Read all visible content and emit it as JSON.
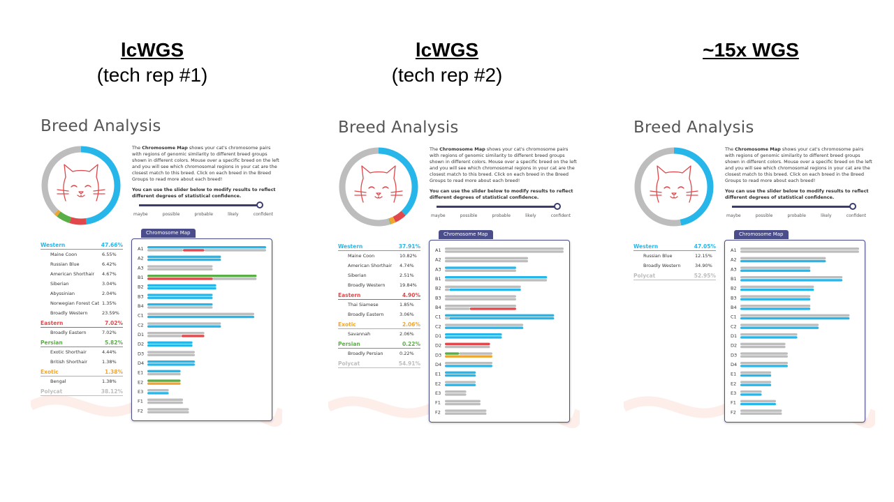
{
  "colors": {
    "Western": "#27b6e9",
    "Eastern": "#e2474b",
    "Persian": "#5aae47",
    "Exotic": "#f0a531",
    "Polycat": "#bdbdbd"
  },
  "columns": [
    {
      "title": "lcWGS",
      "subtitle": "(tech rep #1)"
    },
    {
      "title": "lcWGS",
      "subtitle": "(tech rep #2)"
    },
    {
      "title": "~15x WGS",
      "subtitle": ""
    }
  ],
  "panel": {
    "title": "Breed Analysis",
    "desc_bold": "Chromosome Map",
    "desc_pre": "The",
    "desc_post": "shows your cat's chromosome pairs with regions of genomic similarity to different breed groups shown in different colors. Mouse over a specific breed on the left and you will see which chromosomal regions in your cat are the closest match to this breed. Click on each breed in the Breed Groups to read more about each breed!",
    "desc2": "You can use the slider below to modify results to reflect different degrees of statistical confidence.",
    "slider_labels": [
      "maybe",
      "possible",
      "probable",
      "likely",
      "confident"
    ],
    "cmap_tab": "Chromosome Map",
    "chromosomes": [
      "A1",
      "A2",
      "A3",
      "B1",
      "B2",
      "B3",
      "B4",
      "C1",
      "C2",
      "D1",
      "D2",
      "D3",
      "D4",
      "E1",
      "E2",
      "E3",
      "F1",
      "F2"
    ]
  },
  "chart_data": [
    {
      "type": "table",
      "title": "Breed Analysis",
      "panel": "lcWGS (tech rep #1)",
      "groups": [
        {
          "name": "Western",
          "pct": "47.66%",
          "breeds": [
            {
              "name": "Maine Coon",
              "pct": "6.55%"
            },
            {
              "name": "Russian Blue",
              "pct": "6.42%"
            },
            {
              "name": "American Shorthair",
              "pct": "4.67%"
            },
            {
              "name": "Siberian",
              "pct": "3.04%"
            },
            {
              "name": "Abyssinian",
              "pct": "2.04%"
            },
            {
              "name": "Norwegian Forest Cat",
              "pct": "1.35%"
            },
            {
              "name": "Broadly Western",
              "pct": "23.59%"
            }
          ]
        },
        {
          "name": "Eastern",
          "pct": "7.02%",
          "breeds": [
            {
              "name": "Broadly Eastern",
              "pct": "7.02%"
            }
          ]
        },
        {
          "name": "Persian",
          "pct": "5.82%",
          "breeds": [
            {
              "name": "Exotic Shorthair",
              "pct": "4.44%"
            },
            {
              "name": "British Shorthair",
              "pct": "1.38%"
            }
          ]
        },
        {
          "name": "Exotic",
          "pct": "1.38%",
          "breeds": [
            {
              "name": "Bengal",
              "pct": "1.38%"
            }
          ]
        },
        {
          "name": "Polycat",
          "pct": "38.12%",
          "breeds": []
        }
      ],
      "donut": [
        {
          "group": "Western",
          "value": 47.66
        },
        {
          "group": "Eastern",
          "value": 7.02
        },
        {
          "group": "Persian",
          "value": 5.82
        },
        {
          "group": "Exotic",
          "value": 1.38
        },
        {
          "group": "Polycat",
          "value": 38.12
        }
      ],
      "chromosome_lengths": [
        1.0,
        0.62,
        0.55,
        0.92,
        0.58,
        0.55,
        0.55,
        0.9,
        0.62,
        0.48,
        0.38,
        0.4,
        0.4,
        0.28,
        0.28,
        0.18,
        0.3,
        0.35
      ],
      "chromosome_tracks": [
        [
          [
            "Western",
            0,
            1
          ]
        ],
        [
          [
            "Western",
            0,
            1
          ]
        ],
        [
          [
            "Polycat",
            0,
            1
          ]
        ],
        [
          [
            "Persian",
            0,
            1
          ]
        ],
        [
          [
            "Western",
            0,
            1
          ]
        ],
        [
          [
            "Western",
            0,
            1
          ]
        ],
        [
          [
            "Western",
            0,
            1
          ]
        ],
        [
          [
            "Polycat",
            0,
            1
          ]
        ],
        [
          [
            "Polycat",
            0,
            1
          ]
        ],
        [
          [
            "Polycat",
            0,
            1
          ]
        ],
        [
          [
            "Western",
            0,
            1
          ]
        ],
        [
          [
            "Polycat",
            0,
            1
          ]
        ],
        [
          [
            "Western",
            0,
            1
          ]
        ],
        [
          [
            "Western",
            0,
            1
          ]
        ],
        [
          [
            "Persian",
            0,
            1
          ]
        ],
        [
          [
            "Polycat",
            0,
            1
          ]
        ],
        [
          [
            "Polycat",
            0,
            1
          ]
        ],
        [
          [
            "Polycat",
            0,
            1
          ]
        ]
      ],
      "chromosome_tracks_2": [
        [
          [
            "Polycat",
            0,
            0.3
          ],
          [
            "Eastern",
            0.3,
            0.48
          ],
          [
            "Polycat",
            0.48,
            1
          ]
        ],
        [
          [
            "Western",
            0,
            1
          ]
        ],
        [
          [
            "Polycat",
            0,
            1
          ]
        ],
        [
          [
            "Eastern",
            0,
            0.6
          ],
          [
            "Polycat",
            0.6,
            1
          ]
        ],
        [
          [
            "Western",
            0,
            1
          ]
        ],
        [
          [
            "Western",
            0,
            1
          ]
        ],
        [
          [
            "Polycat",
            0,
            1
          ]
        ],
        [
          [
            "Western",
            0,
            1
          ]
        ],
        [
          [
            "Western",
            0,
            1
          ]
        ],
        [
          [
            "Polycat",
            0,
            0.6
          ],
          [
            "Eastern",
            0.6,
            1
          ]
        ],
        [
          [
            "Western",
            0,
            1
          ]
        ],
        [
          [
            "Polycat",
            0,
            1
          ]
        ],
        [
          [
            "Western",
            0,
            1
          ]
        ],
        [
          [
            "Polycat",
            0,
            1
          ]
        ],
        [
          [
            "Exotic",
            0,
            1
          ]
        ],
        [
          [
            "Western",
            0,
            1
          ]
        ],
        [
          [
            "Polycat",
            0,
            1
          ]
        ],
        [
          [
            "Polycat",
            0,
            1
          ]
        ]
      ]
    },
    {
      "type": "table",
      "title": "Breed Analysis",
      "panel": "lcWGS (tech rep #2)",
      "groups": [
        {
          "name": "Western",
          "pct": "37.91%",
          "breeds": [
            {
              "name": "Maine Coon",
              "pct": "10.82%"
            },
            {
              "name": "American Shorthair",
              "pct": "4.74%"
            },
            {
              "name": "Siberian",
              "pct": "2.51%"
            },
            {
              "name": "Broadly Western",
              "pct": "19.84%"
            }
          ]
        },
        {
          "name": "Eastern",
          "pct": "4.90%",
          "breeds": [
            {
              "name": "Thai Siamese",
              "pct": "1.85%"
            },
            {
              "name": "Broadly Eastern",
              "pct": "3.06%"
            }
          ]
        },
        {
          "name": "Exotic",
          "pct": "2.06%",
          "breeds": [
            {
              "name": "Savannah",
              "pct": "2.06%"
            }
          ]
        },
        {
          "name": "Persian",
          "pct": "0.22%",
          "breeds": [
            {
              "name": "Broadly Persian",
              "pct": "0.22%"
            }
          ]
        },
        {
          "name": "Polycat",
          "pct": "54.91%",
          "breeds": []
        }
      ],
      "donut": [
        {
          "group": "Western",
          "value": 37.91
        },
        {
          "group": "Eastern",
          "value": 4.9
        },
        {
          "group": "Exotic",
          "value": 2.06
        },
        {
          "group": "Persian",
          "value": 0.22
        },
        {
          "group": "Polycat",
          "value": 54.91
        }
      ],
      "chromosome_lengths": [
        1.0,
        0.7,
        0.6,
        0.86,
        0.64,
        0.6,
        0.6,
        0.92,
        0.66,
        0.48,
        0.38,
        0.4,
        0.4,
        0.26,
        0.26,
        0.18,
        0.3,
        0.35
      ],
      "chromosome_tracks": [
        [
          [
            "Polycat",
            0,
            1
          ]
        ],
        [
          [
            "Polycat",
            0,
            1
          ]
        ],
        [
          [
            "Western",
            0,
            1
          ]
        ],
        [
          [
            "Western",
            0,
            1
          ]
        ],
        [
          [
            "Polycat",
            0,
            1
          ]
        ],
        [
          [
            "Polycat",
            0,
            1
          ]
        ],
        [
          [
            "Polycat",
            0,
            1
          ]
        ],
        [
          [
            "Western",
            0,
            1
          ]
        ],
        [
          [
            "Polycat",
            0,
            1
          ]
        ],
        [
          [
            "Western",
            0,
            1
          ]
        ],
        [
          [
            "Eastern",
            0,
            1
          ]
        ],
        [
          [
            "Persian",
            0,
            0.3
          ],
          [
            "Polycat",
            0.3,
            1
          ]
        ],
        [
          [
            "Polycat",
            0,
            1
          ]
        ],
        [
          [
            "Western",
            0,
            1
          ]
        ],
        [
          [
            "Polycat",
            0,
            1
          ]
        ],
        [
          [
            "Polycat",
            0,
            1
          ]
        ],
        [
          [
            "Polycat",
            0,
            1
          ]
        ],
        [
          [
            "Polycat",
            0,
            1
          ]
        ]
      ],
      "chromosome_tracks_2": [
        [
          [
            "Polycat",
            0,
            1
          ]
        ],
        [
          [
            "Polycat",
            0,
            1
          ]
        ],
        [
          [
            "Polycat",
            0,
            1
          ]
        ],
        [
          [
            "Polycat",
            0,
            1
          ]
        ],
        [
          [
            "Polycat",
            0,
            0.06
          ],
          [
            "Western",
            0.06,
            1
          ]
        ],
        [
          [
            "Polycat",
            0,
            1
          ]
        ],
        [
          [
            "Polycat",
            0,
            0.35
          ],
          [
            "Eastern",
            0.35,
            1
          ]
        ],
        [
          [
            "Polycat",
            0,
            0.04
          ],
          [
            "Western",
            0.04,
            1
          ]
        ],
        [
          [
            "Western",
            0,
            1
          ]
        ],
        [
          [
            "Western",
            0,
            1
          ]
        ],
        [
          [
            "Polycat",
            0,
            1
          ]
        ],
        [
          [
            "Exotic",
            0,
            1
          ]
        ],
        [
          [
            "Western",
            0,
            1
          ]
        ],
        [
          [
            "Western",
            0,
            1
          ]
        ],
        [
          [
            "Western",
            0,
            1
          ]
        ],
        [
          [
            "Polycat",
            0,
            1
          ]
        ],
        [
          [
            "Polycat",
            0,
            1
          ]
        ],
        [
          [
            "Polycat",
            0,
            1
          ]
        ]
      ]
    },
    {
      "type": "table",
      "title": "Breed Analysis",
      "panel": "~15x WGS",
      "groups": [
        {
          "name": "Western",
          "pct": "47.05%",
          "breeds": [
            {
              "name": "Russian Blue",
              "pct": "12.15%"
            },
            {
              "name": "Broadly Western",
              "pct": "34.90%"
            }
          ]
        },
        {
          "name": "Polycat",
          "pct": "52.95%",
          "breeds": []
        }
      ],
      "donut": [
        {
          "group": "Western",
          "value": 47.05
        },
        {
          "group": "Polycat",
          "value": 52.95
        }
      ],
      "chromosome_lengths": [
        1.0,
        0.72,
        0.59,
        0.86,
        0.62,
        0.59,
        0.59,
        0.92,
        0.66,
        0.48,
        0.38,
        0.4,
        0.4,
        0.26,
        0.26,
        0.18,
        0.3,
        0.35
      ],
      "chromosome_tracks": [
        [
          [
            "Polycat",
            0,
            1
          ]
        ],
        [
          [
            "Polycat",
            0,
            1
          ]
        ],
        [
          [
            "Polycat",
            0,
            1
          ]
        ],
        [
          [
            "Polycat",
            0,
            1
          ]
        ],
        [
          [
            "Polycat",
            0,
            1
          ]
        ],
        [
          [
            "Polycat",
            0,
            1
          ]
        ],
        [
          [
            "Polycat",
            0,
            1
          ]
        ],
        [
          [
            "Polycat",
            0,
            1
          ]
        ],
        [
          [
            "Polycat",
            0,
            1
          ]
        ],
        [
          [
            "Polycat",
            0,
            1
          ]
        ],
        [
          [
            "Polycat",
            0,
            1
          ]
        ],
        [
          [
            "Polycat",
            0,
            1
          ]
        ],
        [
          [
            "Polycat",
            0,
            1
          ]
        ],
        [
          [
            "Polycat",
            0,
            1
          ]
        ],
        [
          [
            "Polycat",
            0,
            1
          ]
        ],
        [
          [
            "Polycat",
            0,
            1
          ]
        ],
        [
          [
            "Polycat",
            0,
            1
          ]
        ],
        [
          [
            "Polycat",
            0,
            1
          ]
        ]
      ],
      "chromosome_tracks_2": [
        [
          [
            "Polycat",
            0,
            1
          ]
        ],
        [
          [
            "Western",
            0,
            1
          ]
        ],
        [
          [
            "Western",
            0,
            1
          ]
        ],
        [
          [
            "Western",
            0,
            1
          ]
        ],
        [
          [
            "Western",
            0,
            1
          ]
        ],
        [
          [
            "Western",
            0,
            1
          ]
        ],
        [
          [
            "Western",
            0,
            1
          ]
        ],
        [
          [
            "Western",
            0,
            1
          ]
        ],
        [
          [
            "Western",
            0,
            1
          ]
        ],
        [
          [
            "Western",
            0,
            1
          ]
        ],
        [
          [
            "Polycat",
            0,
            1
          ]
        ],
        [
          [
            "Polycat",
            0,
            1
          ]
        ],
        [
          [
            "Western",
            0,
            1
          ]
        ],
        [
          [
            "Western",
            0,
            1
          ]
        ],
        [
          [
            "Western",
            0,
            1
          ]
        ],
        [
          [
            "Western",
            0,
            1
          ]
        ],
        [
          [
            "Western",
            0,
            1
          ]
        ],
        [
          [
            "Polycat",
            0,
            1
          ]
        ]
      ]
    }
  ]
}
